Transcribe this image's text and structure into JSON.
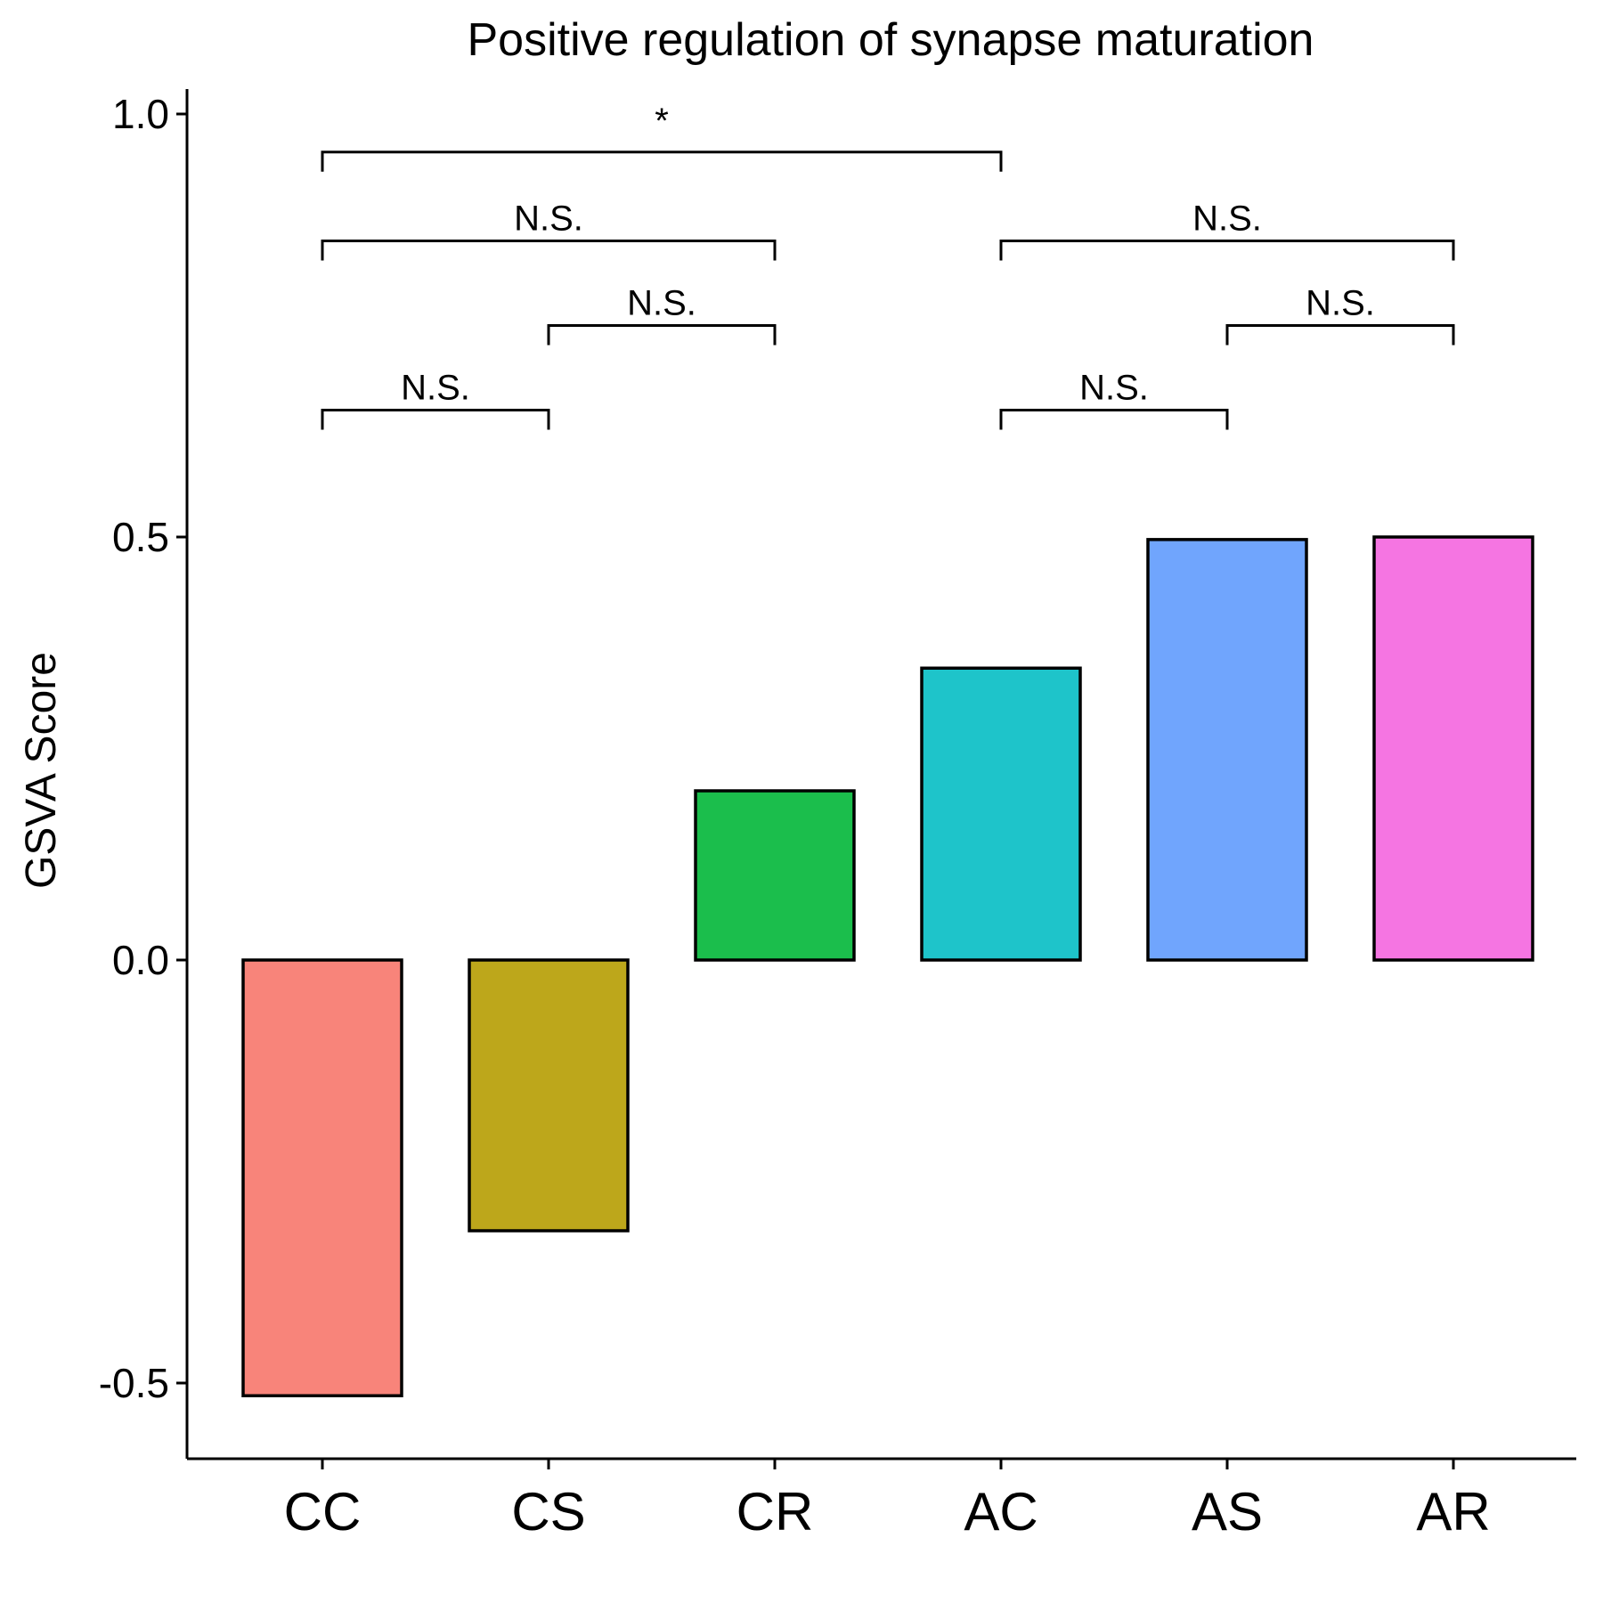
{
  "chart_data": {
    "type": "bar",
    "title": "Positive regulation of synapse maturation",
    "xlabel": "",
    "ylabel": "GSVA Score",
    "categories": [
      "CC",
      "CS",
      "CR",
      "AC",
      "AS",
      "AR"
    ],
    "values": [
      -0.515,
      -0.32,
      0.2,
      0.345,
      0.497,
      0.5
    ],
    "colors": [
      "#F8847A",
      "#BDA71B",
      "#1BBE4C",
      "#1EC4CA",
      "#70A5FD",
      "#F575E2"
    ],
    "ylim": [
      -0.6,
      1.03
    ],
    "yticks": [
      {
        "value": -0.5,
        "label": "-0.5"
      },
      {
        "value": 0.0,
        "label": "0.0"
      },
      {
        "value": 0.5,
        "label": "0.5"
      },
      {
        "value": 1.0,
        "label": "1.0"
      }
    ],
    "grid": false,
    "legend": "none",
    "comparisons": [
      {
        "from": "CC",
        "to": "CS",
        "y": 0.65,
        "label": "N.S."
      },
      {
        "from": "CS",
        "to": "CR",
        "y": 0.75,
        "label": "N.S."
      },
      {
        "from": "CC",
        "to": "CR",
        "y": 0.85,
        "label": "N.S."
      },
      {
        "from": "CC",
        "to": "AC",
        "y": 0.955,
        "label": "*"
      },
      {
        "from": "AC",
        "to": "AS",
        "y": 0.65,
        "label": "N.S."
      },
      {
        "from": "AS",
        "to": "AR",
        "y": 0.75,
        "label": "N.S."
      },
      {
        "from": "AC",
        "to": "AR",
        "y": 0.85,
        "label": "N.S."
      }
    ]
  }
}
